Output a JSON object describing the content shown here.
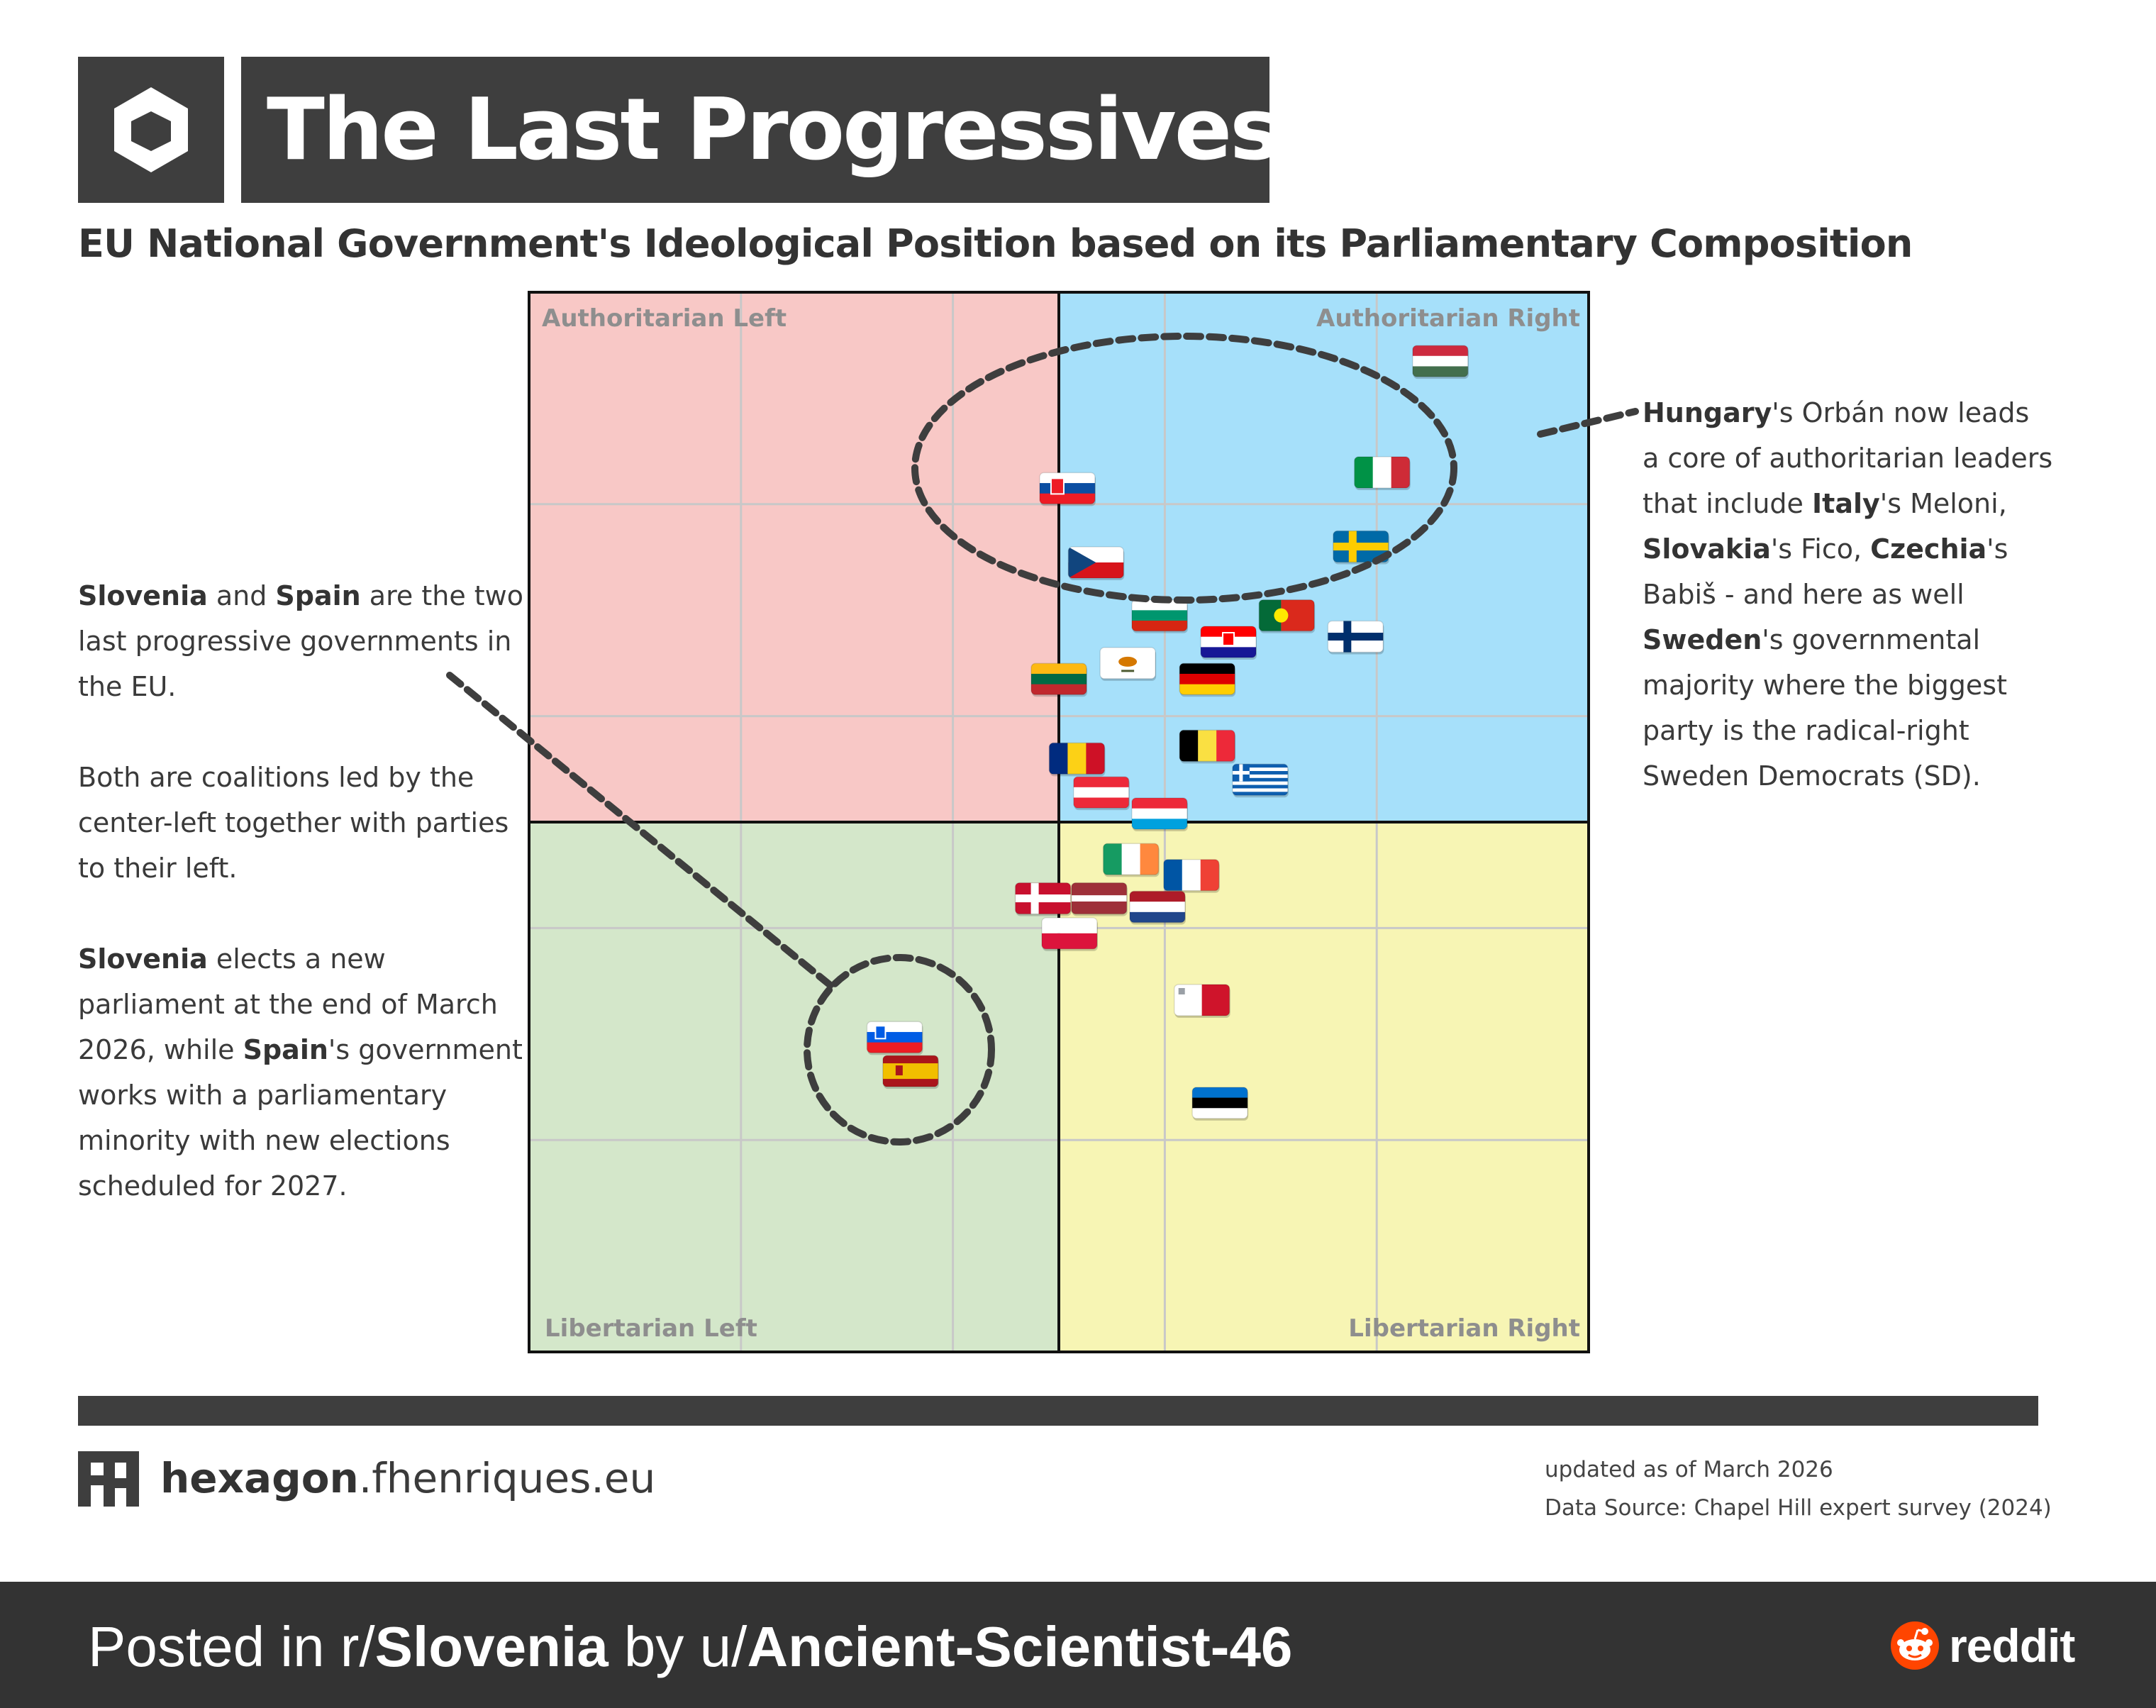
{
  "header": {
    "title": "The Last Progressives",
    "subtitle": "EU National Government's Ideological Position based on its Parliamentary Composition",
    "logo_icon": "hexagon-logo-icon"
  },
  "left_note": {
    "p1": [
      {
        "t": "Slovenia",
        "b": true
      },
      {
        "t": " and "
      },
      {
        "t": "Spain",
        "b": true
      },
      {
        "t": " are the two last progressive governments in the EU."
      }
    ],
    "p2": [
      {
        "t": "Both are coalitions led by the center-left together with parties to their left."
      }
    ],
    "p3": [
      {
        "t": "Slovenia",
        "b": true
      },
      {
        "t": " elects a new parliament at the end of March 2026, while "
      },
      {
        "t": "Spain",
        "b": true
      },
      {
        "t": "'s government works with a parliamentary minority with new elections scheduled for 2027."
      }
    ]
  },
  "right_note": {
    "p1": [
      {
        "t": "Hungary",
        "b": true
      },
      {
        "t": "'s Orbán now leads a core of authoritarian leaders that include "
      },
      {
        "t": "Italy",
        "b": true
      },
      {
        "t": "'s Meloni, "
      },
      {
        "t": "Slovakia",
        "b": true
      },
      {
        "t": "'s Fico, "
      },
      {
        "t": "Czechia",
        "b": true
      },
      {
        "t": "'s Babiš - and here as well "
      },
      {
        "t": "Sweden",
        "b": true
      },
      {
        "t": "'s governmental majority where the biggest party is the radical-right Sweden Democrats (SD)."
      }
    ]
  },
  "chart_data": {
    "type": "scatter",
    "title": "",
    "xlabel": "",
    "ylabel": "",
    "xlim": [
      -5,
      5
    ],
    "ylim": [
      -5,
      5
    ],
    "grid": true,
    "quadrants": [
      {
        "name": "Authoritarian Left",
        "color": "#f8c8c6"
      },
      {
        "name": "Authoritarian Right",
        "color": "#a6e0fa"
      },
      {
        "name": "Libertarian Left",
        "color": "#d4e7ca"
      },
      {
        "name": "Libertarian Right",
        "color": "#f7f5b4"
      }
    ],
    "points": [
      {
        "country": "Hungary",
        "x": 3.6,
        "y": 4.35
      },
      {
        "country": "Italy",
        "x": 3.05,
        "y": 3.3
      },
      {
        "country": "Slovakia",
        "x": 0.08,
        "y": 3.15
      },
      {
        "country": "Sweden",
        "x": 2.85,
        "y": 2.6
      },
      {
        "country": "Czechia",
        "x": 0.35,
        "y": 2.45
      },
      {
        "country": "Bulgaria",
        "x": 0.95,
        "y": 1.95
      },
      {
        "country": "Portugal",
        "x": 2.15,
        "y": 1.95
      },
      {
        "country": "Croatia",
        "x": 1.6,
        "y": 1.7
      },
      {
        "country": "Finland",
        "x": 2.8,
        "y": 1.75
      },
      {
        "country": "Cyprus",
        "x": 0.65,
        "y": 1.5
      },
      {
        "country": "Lithuania",
        "x": 0.0,
        "y": 1.35
      },
      {
        "country": "Germany",
        "x": 1.4,
        "y": 1.35
      },
      {
        "country": "Belgium",
        "x": 1.4,
        "y": 0.72
      },
      {
        "country": "Romania",
        "x": 0.17,
        "y": 0.6
      },
      {
        "country": "Greece",
        "x": 1.9,
        "y": 0.4
      },
      {
        "country": "Austria",
        "x": 0.4,
        "y": 0.28
      },
      {
        "country": "Luxembourg",
        "x": 0.95,
        "y": 0.08
      },
      {
        "country": "Ireland",
        "x": 0.68,
        "y": -0.35
      },
      {
        "country": "France",
        "x": 1.25,
        "y": -0.5
      },
      {
        "country": "Denmark",
        "x": -0.15,
        "y": -0.72
      },
      {
        "country": "Latvia",
        "x": 0.38,
        "y": -0.72
      },
      {
        "country": "Netherlands",
        "x": 0.93,
        "y": -0.8
      },
      {
        "country": "Poland",
        "x": 0.1,
        "y": -1.05
      },
      {
        "country": "Malta",
        "x": 1.35,
        "y": -1.68
      },
      {
        "country": "Estonia",
        "x": 1.52,
        "y": -2.65
      },
      {
        "country": "Slovenia",
        "x": -1.55,
        "y": -2.03
      },
      {
        "country": "Spain",
        "x": -1.4,
        "y": -2.35
      }
    ]
  },
  "footer_site": {
    "brand": "hexagon",
    "domain": ".fhenriques.eu",
    "logo_icon": "fh-logo-icon"
  },
  "meta": {
    "updated": "updated as of March 2026",
    "source": "Data Source: Chapel Hill expert survey (2024)"
  },
  "post_bar": {
    "prefix": "Posted in r/",
    "subreddit": "Slovenia",
    "by": " by u/",
    "user": "Ancient-Scientist-46",
    "brand": "reddit",
    "icon": "reddit-alien-icon"
  },
  "colors": {
    "dark": "#3e3e3e",
    "footer": "#333333",
    "reddit_orange": "#ff4500"
  }
}
